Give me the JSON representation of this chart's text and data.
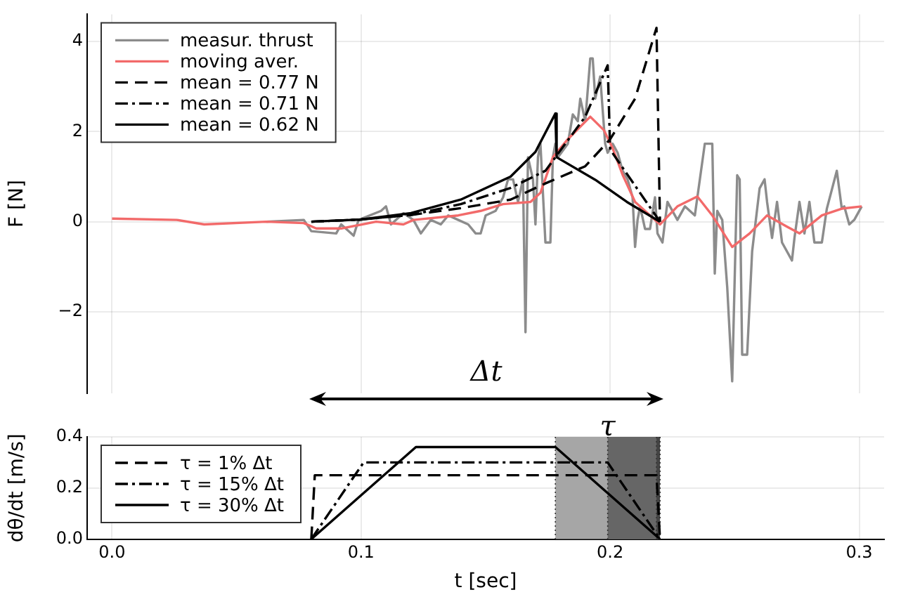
{
  "chart_data": [
    {
      "type": "line",
      "ylabel": "F [N]",
      "xlim": [
        -0.01,
        0.31
      ],
      "xticks": [
        0,
        0.1,
        0.2,
        0.3
      ],
      "ylim": [
        -3.8,
        4.6
      ],
      "yticks": [
        {
          "value": -2,
          "label": "−2"
        },
        0,
        2,
        4
      ],
      "tick_labels": "y",
      "grid": true,
      "legend": "top left",
      "annotations": [
        "Δt"
      ],
      "series": [
        {
          "name": "measur. thrust",
          "color": "#8c8c8c",
          "line_style": "solid",
          "x": [
            0.062,
            0.077,
            0.08,
            0.09,
            0.092,
            0.097,
            0.099,
            0.108,
            0.11,
            0.112,
            0.117,
            0.121,
            0.124,
            0.128,
            0.132,
            0.135,
            0.139,
            0.143,
            0.146,
            0.148,
            0.15,
            0.154,
            0.157,
            0.159,
            0.161,
            0.163,
            0.165,
            0.166,
            0.167,
            0.169,
            0.17,
            0.171,
            0.172,
            0.174,
            0.176,
            0.177,
            0.178,
            0.179,
            0.183,
            0.185,
            0.187,
            0.188,
            0.19,
            0.192,
            0.193,
            0.194,
            0.196,
            0.198,
            0.199,
            0.201,
            0.203,
            0.205,
            0.207,
            0.209,
            0.21,
            0.211,
            0.212,
            0.214,
            0.216,
            0.218,
            0.219,
            0.221,
            0.223,
            0.224,
            0.227,
            0.23,
            0.234,
            0.238,
            0.241,
            0.242,
            0.243,
            0.245,
            0.247,
            0.249,
            0.251,
            0.252,
            0.253,
            0.255,
            0.257,
            0.26,
            0.262,
            0.263,
            0.265,
            0.267,
            0.269,
            0.273,
            0.274,
            0.276,
            0.278,
            0.28,
            0.282,
            0.285,
            0.287,
            0.291,
            0.293,
            0.294,
            0.296,
            0.298,
            0.301
          ],
          "values": [
            0.0,
            0.04,
            -0.21,
            -0.26,
            -0.06,
            -0.31,
            0.04,
            0.24,
            0.34,
            -0.06,
            0.19,
            0.04,
            -0.26,
            0.04,
            -0.06,
            0.14,
            0.04,
            -0.06,
            -0.26,
            -0.26,
            0.14,
            0.24,
            0.54,
            0.94,
            0.94,
            0.44,
            0.94,
            -2.45,
            1.43,
            0.94,
            -0.06,
            1.43,
            1.73,
            -0.46,
            -0.46,
            1.43,
            1.73,
            1.43,
            1.73,
            2.38,
            2.23,
            2.73,
            2.23,
            3.62,
            3.62,
            2.73,
            3.22,
            1.73,
            1.53,
            1.73,
            1.53,
            1.13,
            0.94,
            0.54,
            -0.56,
            0.04,
            0.34,
            -0.16,
            -0.16,
            0.54,
            -0.26,
            -0.46,
            0.44,
            0.34,
            0.04,
            0.34,
            0.14,
            1.73,
            1.73,
            -1.15,
            0.24,
            0.04,
            -1.45,
            -3.54,
            1.03,
            0.94,
            -2.95,
            -2.95,
            -0.66,
            0.74,
            0.94,
            0.44,
            -0.36,
            0.44,
            -0.46,
            -0.86,
            -0.36,
            0.44,
            -0.26,
            0.44,
            -0.46,
            -0.46,
            0.29,
            1.13,
            0.29,
            0.34,
            -0.06,
            0.04,
            0.34
          ]
        },
        {
          "name": "moving aver.",
          "color": "#f26a6a",
          "line_style": "solid",
          "x": [
            0,
            0.026,
            0.037,
            0.062,
            0.077,
            0.082,
            0.092,
            0.106,
            0.117,
            0.121,
            0.139,
            0.148,
            0.157,
            0.168,
            0.172,
            0.177,
            0.183,
            0.192,
            0.1975,
            0.201,
            0.205,
            0.21,
            0.22,
            0.227,
            0.235,
            0.241,
            0.249,
            0.256,
            0.263,
            0.271,
            0.276,
            0.285,
            0.293,
            0.301
          ],
          "values": [
            0.07,
            0.04,
            -0.06,
            0.0,
            -0.03,
            -0.15,
            -0.15,
            0.0,
            -0.06,
            0.04,
            0.14,
            0.24,
            0.39,
            0.44,
            0.64,
            1.43,
            1.83,
            2.33,
            2.03,
            1.63,
            1.04,
            0.44,
            -0.06,
            0.34,
            0.56,
            0.14,
            -0.56,
            -0.26,
            0.14,
            -0.11,
            -0.26,
            0.14,
            0.29,
            0.34
          ]
        },
        {
          "name": "mean = 0.77 N",
          "color": "#000000",
          "line_style": "dashed",
          "x": [
            0.08,
            0.1,
            0.12,
            0.14,
            0.16,
            0.174,
            0.19,
            0.2,
            0.21,
            0.2186,
            0.22
          ],
          "values": [
            0,
            0.05,
            0.15,
            0.3,
            0.49,
            0.85,
            1.23,
            1.83,
            2.73,
            4.3,
            0
          ]
        },
        {
          "name": "mean = 0.71 N",
          "color": "#000000",
          "line_style": "dashdot",
          "x": [
            0.08,
            0.1,
            0.12,
            0.14,
            0.16,
            0.174,
            0.19,
            0.199,
            0.2,
            0.22
          ],
          "values": [
            0,
            0.05,
            0.15,
            0.39,
            0.75,
            1.13,
            2.33,
            3.47,
            1.6,
            0
          ]
        },
        {
          "name": "mean = 0.62 N",
          "color": "#000000",
          "line_style": "solid",
          "x": [
            0.08,
            0.1,
            0.12,
            0.14,
            0.16,
            0.17,
            0.178,
            0.1785,
            0.194,
            0.2067,
            0.22
          ],
          "values": [
            0,
            0.05,
            0.19,
            0.49,
            1.0,
            1.55,
            2.4,
            1.43,
            0.93,
            0.44,
            0
          ]
        }
      ]
    },
    {
      "type": "line",
      "xlabel": "t [sec]",
      "ylabel": "dθ/dt [m/s]",
      "xlim": [
        -0.01,
        0.31
      ],
      "xticks": [
        {
          "value": 0,
          "label": "0.0"
        },
        0.1,
        0.2,
        0.3
      ],
      "ylim": [
        0,
        0.4
      ],
      "yticks": [
        {
          "value": 0,
          "label": "0.0"
        },
        0.2,
        0.4
      ],
      "grid": true,
      "legend": "top left",
      "bands": [
        {
          "axis": "x",
          "from": 0.178,
          "to": 0.22,
          "label": "τ",
          "color": "#a6a6a6"
        },
        {
          "axis": "x",
          "from": 0.199,
          "to": 0.22,
          "color": "#666666"
        },
        {
          "axis": "x",
          "from": 0.2186,
          "to": 0.22,
          "color": "#444444"
        }
      ],
      "series": [
        {
          "name": "τ = 1% Δt",
          "color": "#000000",
          "line_style": "dashed",
          "x": [
            0.08,
            0.0814,
            0.2186,
            0.22
          ],
          "values": [
            0,
            0.25,
            0.25,
            0
          ]
        },
        {
          "name": "τ = 15% Δt",
          "color": "#000000",
          "line_style": "dashdot",
          "x": [
            0.08,
            0.101,
            0.199,
            0.22
          ],
          "values": [
            0,
            0.3,
            0.3,
            0
          ]
        },
        {
          "name": "τ = 30% Δt",
          "color": "#000000",
          "line_style": "solid",
          "x": [
            0.08,
            0.122,
            0.178,
            0.22
          ],
          "values": [
            0,
            0.36,
            0.36,
            0
          ]
        }
      ]
    }
  ]
}
